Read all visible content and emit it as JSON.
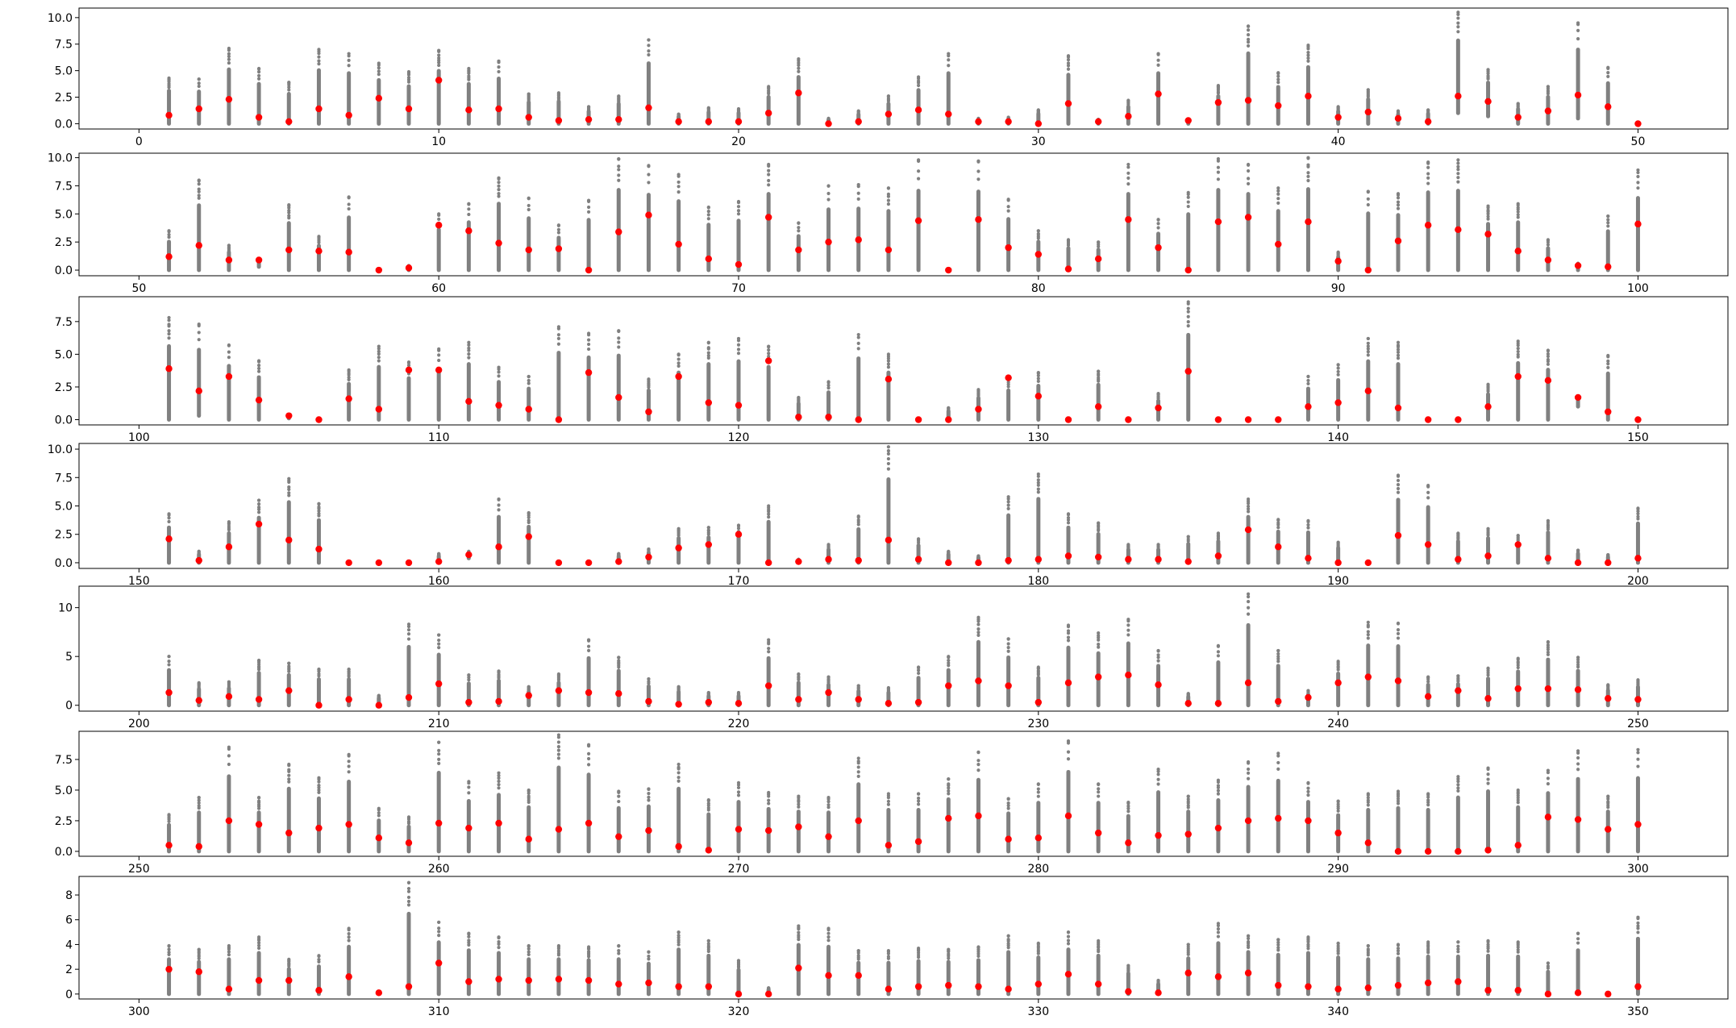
{
  "colors": {
    "points": "#808080",
    "median": "#ff0000",
    "axes": "#000000",
    "background": "#ffffff"
  },
  "chart_data": [
    {
      "type": "scatter",
      "xlim": [
        -2,
        53
      ],
      "ylim": [
        -0.5,
        10.9
      ],
      "xticks": [
        0,
        10,
        20,
        30,
        40,
        50
      ],
      "xtick_labels": [
        "0",
        "10",
        "20",
        "30",
        "40",
        "50"
      ],
      "yticks": [
        0,
        2.5,
        5,
        7.5,
        10
      ],
      "ytick_labels": [
        "0.0",
        "2.5",
        "5.0",
        "7.5",
        "10.0"
      ],
      "start": 1,
      "medians": [
        0.8,
        1.4,
        2.3,
        0.6,
        0.2,
        1.4,
        0.8,
        2.4,
        1.4,
        4.1,
        1.3,
        1.4,
        0.6,
        0.3,
        0.4,
        0.4,
        1.5,
        0.2,
        0.2,
        0.2,
        1.0,
        2.9,
        0.0,
        0.2,
        0.9,
        1.3,
        0.9,
        0.2,
        0.2,
        0.0,
        1.9,
        0.2,
        0.7,
        2.8,
        0.3,
        2.0,
        2.2,
        1.7,
        2.6,
        0.6,
        1.1,
        0.5,
        0.2,
        2.6,
        2.1,
        0.6,
        1.2,
        2.7,
        1.6,
        0.0
      ],
      "maxima": [
        4.3,
        4.2,
        7.1,
        5.2,
        3.9,
        7.0,
        6.6,
        5.7,
        4.9,
        6.9,
        5.2,
        5.9,
        2.8,
        2.9,
        1.6,
        2.6,
        7.9,
        0.9,
        1.5,
        1.4,
        3.5,
        6.1,
        0.5,
        1.2,
        2.6,
        4.4,
        6.6,
        0.5,
        0.6,
        1.3,
        6.4,
        0.4,
        2.2,
        6.6,
        0.4,
        3.6,
        9.2,
        4.8,
        7.4,
        1.6,
        3.2,
        1.2,
        1.3,
        10.5,
        5.1,
        1.9,
        3.5,
        9.5,
        5.3,
        0.0
      ],
      "minima": [
        0,
        0,
        0,
        0,
        0,
        0,
        0,
        0,
        0,
        0,
        0,
        0,
        0,
        0,
        0,
        0,
        0,
        0,
        0,
        0,
        0,
        0,
        0,
        0,
        0,
        0,
        0,
        0,
        0,
        0,
        0,
        0,
        0,
        0,
        0,
        0,
        0,
        0,
        0,
        0,
        0,
        0,
        0,
        1.0,
        0.7,
        0,
        0,
        0.5,
        0,
        0
      ]
    },
    {
      "type": "scatter",
      "xlim": [
        48,
        103
      ],
      "ylim": [
        -0.5,
        10.4
      ],
      "xticks": [
        50,
        60,
        70,
        80,
        90,
        100
      ],
      "xtick_labels": [
        "50",
        "60",
        "70",
        "80",
        "90",
        "100"
      ],
      "yticks": [
        0,
        2.5,
        5,
        7.5,
        10
      ],
      "ytick_labels": [
        "0.0",
        "2.5",
        "5.0",
        "7.5",
        "10.0"
      ],
      "start": 51,
      "medians": [
        1.2,
        2.2,
        0.9,
        0.9,
        1.8,
        1.7,
        1.6,
        0.0,
        0.2,
        4.0,
        3.5,
        2.4,
        1.8,
        1.9,
        0.0,
        3.4,
        4.9,
        2.3,
        1.0,
        0.5,
        4.7,
        1.8,
        2.5,
        2.7,
        1.8,
        4.4,
        0.0,
        4.5,
        2.0,
        1.4,
        0.1,
        1.0,
        4.5,
        2.0,
        0.0,
        4.3,
        4.7,
        2.3,
        4.3,
        0.8,
        0.0,
        2.6,
        4.0,
        3.6,
        3.2,
        1.7,
        0.9,
        0.4,
        0.3,
        4.1
      ],
      "maxima": [
        3.5,
        8.0,
        2.2,
        0.9,
        5.8,
        3.0,
        6.5,
        0.0,
        0.4,
        5.0,
        5.9,
        8.2,
        6.4,
        4.0,
        6.2,
        9.9,
        9.3,
        8.5,
        5.6,
        6.1,
        9.4,
        4.2,
        7.5,
        7.6,
        7.3,
        9.8,
        0.0,
        9.7,
        6.3,
        3.5,
        2.7,
        2.5,
        9.4,
        4.5,
        6.9,
        9.9,
        9.4,
        7.3,
        10.0,
        1.6,
        7.0,
        6.8,
        9.6,
        9.8,
        5.7,
        5.9,
        2.7,
        0.6,
        4.8,
        8.9
      ],
      "minima": [
        0,
        0,
        0,
        0.3,
        0,
        0,
        0,
        0,
        0,
        0,
        0,
        0,
        0,
        0,
        0,
        0,
        0,
        0,
        0,
        0,
        0,
        0,
        0,
        0,
        0,
        0,
        0,
        0,
        0,
        0,
        0,
        0,
        0,
        0,
        0,
        0,
        0,
        0,
        0,
        0,
        0,
        0,
        0,
        0,
        0,
        0,
        0,
        0,
        0,
        0
      ]
    },
    {
      "type": "scatter",
      "xlim": [
        98,
        153
      ],
      "ylim": [
        -0.4,
        9.4
      ],
      "xticks": [
        100,
        110,
        120,
        130,
        140,
        150
      ],
      "xtick_labels": [
        "100",
        "110",
        "120",
        "130",
        "140",
        "150"
      ],
      "yticks": [
        0,
        2.5,
        5,
        7.5
      ],
      "ytick_labels": [
        "0.0",
        "2.5",
        "5.0",
        "7.5"
      ],
      "start": 101,
      "medians": [
        3.9,
        2.2,
        3.3,
        1.5,
        0.3,
        0.0,
        1.6,
        0.8,
        3.8,
        3.8,
        1.4,
        1.1,
        0.8,
        0.0,
        3.6,
        1.7,
        0.6,
        3.3,
        1.3,
        1.1,
        4.5,
        0.2,
        0.2,
        0.0,
        3.1,
        0.0,
        0.0,
        0.8,
        3.2,
        1.8,
        0.0,
        1.0,
        0.0,
        0.9,
        3.7,
        0.0,
        0.0,
        0.0,
        1.0,
        1.3,
        2.2,
        0.9,
        0.0,
        0.0,
        1.0,
        3.3,
        3.0,
        1.7,
        0.6,
        0.0
      ],
      "maxima": [
        7.8,
        7.3,
        5.7,
        4.5,
        0.4,
        0.0,
        3.8,
        5.6,
        4.4,
        5.4,
        5.9,
        4.0,
        3.3,
        7.1,
        6.6,
        6.8,
        3.1,
        5.0,
        5.9,
        6.2,
        5.6,
        1.7,
        2.9,
        6.5,
        5.0,
        0.0,
        0.9,
        2.3,
        3.1,
        3.6,
        0.0,
        3.7,
        0.0,
        2.0,
        9.0,
        0.0,
        0.0,
        0.0,
        3.3,
        4.2,
        6.2,
        5.9,
        0.0,
        0.0,
        2.7,
        6.0,
        5.3,
        1.8,
        4.9,
        0.0
      ],
      "minima": [
        0,
        0.3,
        0,
        0,
        0.1,
        0,
        0,
        0,
        0,
        0,
        0,
        0,
        0,
        0,
        0,
        0,
        0,
        0,
        0,
        0,
        0,
        0,
        0,
        0,
        0,
        0,
        0,
        0,
        0,
        0,
        0,
        0,
        0,
        0,
        0,
        0,
        0,
        0,
        0,
        0,
        0,
        0,
        0,
        0,
        0,
        0,
        0,
        1.0,
        0,
        0
      ]
    },
    {
      "type": "scatter",
      "xlim": [
        148,
        203
      ],
      "ylim": [
        -0.5,
        10.5
      ],
      "xticks": [
        150,
        160,
        170,
        180,
        190,
        200
      ],
      "xtick_labels": [
        "150",
        "160",
        "170",
        "180",
        "190",
        "200"
      ],
      "yticks": [
        0,
        2.5,
        5,
        7.5,
        10
      ],
      "ytick_labels": [
        "0.0",
        "2.5",
        "5.0",
        "7.5",
        "10.0"
      ],
      "start": 151,
      "medians": [
        2.1,
        0.2,
        1.4,
        3.4,
        2.0,
        1.2,
        0.0,
        0.0,
        0.0,
        0.1,
        0.7,
        1.4,
        2.3,
        0.0,
        0.0,
        0.1,
        0.5,
        1.3,
        1.6,
        2.5,
        0.0,
        0.1,
        0.3,
        0.2,
        2.0,
        0.3,
        0.0,
        0.0,
        0.2,
        0.3,
        0.6,
        0.5,
        0.3,
        0.3,
        0.1,
        0.6,
        2.9,
        1.4,
        0.4,
        0.0,
        0.0,
        2.4,
        1.6,
        0.3,
        0.6,
        1.6,
        0.4,
        0.0,
        0.0,
        0.4
      ],
      "maxima": [
        4.3,
        1.0,
        3.6,
        5.5,
        7.4,
        5.2,
        0.0,
        0.0,
        0.0,
        0.8,
        1.0,
        5.6,
        4.4,
        0.0,
        0.0,
        0.8,
        1.2,
        3.0,
        3.1,
        3.3,
        5.0,
        0.3,
        1.6,
        4.1,
        10.2,
        2.1,
        1.0,
        0.6,
        5.8,
        7.8,
        4.3,
        3.5,
        1.6,
        1.6,
        2.3,
        2.6,
        5.6,
        3.8,
        3.7,
        1.8,
        0.0,
        7.7,
        6.8,
        2.6,
        3.0,
        2.4,
        3.7,
        1.1,
        0.7,
        4.8
      ],
      "minima": [
        0,
        0,
        0,
        0,
        0,
        0,
        0,
        0,
        0,
        0,
        0.4,
        0,
        0,
        0,
        0,
        0,
        0,
        0,
        0,
        0,
        0,
        0,
        0,
        0,
        0,
        0,
        0,
        0,
        0,
        0,
        0,
        0,
        0,
        0,
        0,
        0,
        0,
        0,
        0,
        0,
        0,
        0,
        0,
        0,
        0,
        0,
        0,
        0,
        0,
        0
      ]
    },
    {
      "type": "scatter",
      "xlim": [
        198,
        253
      ],
      "ylim": [
        -0.6,
        12.2
      ],
      "xticks": [
        200,
        210,
        220,
        230,
        240,
        250
      ],
      "xtick_labels": [
        "200",
        "210",
        "220",
        "230",
        "240",
        "250"
      ],
      "yticks": [
        0,
        5,
        10
      ],
      "ytick_labels": [
        "0",
        "5",
        "10"
      ],
      "start": 201,
      "medians": [
        1.3,
        0.5,
        0.9,
        0.6,
        1.5,
        0.0,
        0.6,
        0.0,
        0.8,
        2.2,
        0.3,
        0.4,
        1.0,
        1.5,
        1.3,
        1.2,
        0.4,
        0.1,
        0.3,
        0.2,
        2.0,
        0.6,
        1.3,
        0.6,
        0.2,
        0.3,
        2.0,
        2.5,
        2.0,
        0.3,
        2.3,
        2.9,
        3.1,
        2.1,
        0.2,
        0.2,
        2.3,
        0.4,
        0.8,
        2.3,
        2.9,
        2.5,
        0.9,
        1.5,
        0.7,
        1.7,
        1.7,
        1.6,
        0.7,
        0.6
      ],
      "maxima": [
        5.0,
        2.3,
        2.4,
        4.6,
        4.3,
        3.7,
        3.7,
        1.0,
        8.3,
        7.2,
        3.1,
        3.5,
        1.9,
        3.2,
        6.7,
        4.9,
        2.7,
        1.9,
        1.3,
        1.3,
        6.7,
        3.2,
        2.9,
        2.0,
        1.8,
        3.9,
        5.0,
        9.0,
        6.8,
        3.9,
        8.2,
        7.4,
        8.8,
        5.6,
        1.2,
        6.1,
        11.4,
        5.6,
        1.5,
        4.5,
        8.5,
        8.4,
        2.9,
        3.0,
        3.8,
        4.8,
        6.5,
        4.9,
        2.1,
        2.6
      ],
      "minima": [
        0,
        0,
        0,
        0,
        0,
        0,
        0,
        0,
        0,
        0,
        0,
        0,
        0,
        0,
        0,
        0,
        0,
        0,
        0,
        0,
        0,
        0,
        0,
        0,
        0,
        0,
        0,
        0,
        0,
        0,
        0,
        0,
        0,
        0,
        0,
        0,
        0,
        0,
        0,
        0,
        0,
        0,
        0,
        0,
        0,
        0,
        0,
        0,
        0,
        0
      ]
    },
    {
      "type": "scatter",
      "xlim": [
        248,
        303
      ],
      "ylim": [
        -0.4,
        9.8
      ],
      "xticks": [
        250,
        260,
        270,
        280,
        290,
        300
      ],
      "xtick_labels": [
        "250",
        "260",
        "270",
        "280",
        "290",
        "300"
      ],
      "yticks": [
        0,
        2.5,
        5,
        7.5
      ],
      "ytick_labels": [
        "0.0",
        "2.5",
        "5.0",
        "7.5"
      ],
      "start": 251,
      "medians": [
        0.5,
        0.4,
        2.5,
        2.2,
        1.5,
        1.9,
        2.2,
        1.1,
        0.7,
        2.3,
        1.9,
        2.3,
        1.0,
        1.8,
        2.3,
        1.2,
        1.7,
        0.4,
        0.1,
        1.8,
        1.7,
        2.0,
        1.2,
        2.5,
        0.5,
        0.8,
        2.7,
        2.9,
        1.0,
        1.1,
        2.9,
        1.5,
        0.7,
        1.3,
        1.4,
        1.9,
        2.5,
        2.7,
        2.5,
        1.5,
        0.7,
        0.0,
        0.0,
        0.0,
        0.1,
        0.5,
        2.8,
        2.6,
        1.8,
        2.2
      ],
      "maxima": [
        3.0,
        4.4,
        8.5,
        4.4,
        7.1,
        6.0,
        7.9,
        3.5,
        2.8,
        8.9,
        5.7,
        6.4,
        5.0,
        9.5,
        8.7,
        4.9,
        5.1,
        7.1,
        4.2,
        5.6,
        4.8,
        4.5,
        4.4,
        7.6,
        4.7,
        4.7,
        5.9,
        8.1,
        4.3,
        5.5,
        9.0,
        5.5,
        4.0,
        6.7,
        4.5,
        5.8,
        7.3,
        8.0,
        5.6,
        4.1,
        4.7,
        4.9,
        4.7,
        6.1,
        6.8,
        5.0,
        6.6,
        8.2,
        4.5,
        8.3
      ],
      "minima": [
        0,
        0,
        0,
        0,
        0,
        0,
        0,
        0,
        0,
        0,
        0,
        0,
        0,
        0,
        0,
        0,
        0,
        0,
        0,
        0,
        0,
        0,
        0,
        0,
        0,
        0,
        0,
        0,
        0,
        0,
        0,
        0,
        0,
        0,
        0,
        0,
        0,
        0,
        0,
        0,
        0,
        0,
        0,
        0,
        0,
        0,
        0,
        0,
        0,
        0
      ]
    },
    {
      "type": "scatter",
      "xlim": [
        298,
        353
      ],
      "ylim": [
        -0.4,
        9.5
      ],
      "xticks": [
        300,
        310,
        320,
        330,
        340,
        350
      ],
      "xtick_labels": [
        "300",
        "310",
        "320",
        "330",
        "340",
        "350"
      ],
      "yticks": [
        0,
        2,
        4,
        6,
        8
      ],
      "ytick_labels": [
        "0",
        "2",
        "4",
        "6",
        "8"
      ],
      "start": 301,
      "medians": [
        2.0,
        1.8,
        0.4,
        1.1,
        1.1,
        0.3,
        1.4,
        0.1,
        0.6,
        2.5,
        1.0,
        1.2,
        1.1,
        1.2,
        1.1,
        0.8,
        0.9,
        0.6,
        0.6,
        0.0,
        0.0,
        2.1,
        1.5,
        1.5,
        0.4,
        0.6,
        0.7,
        0.6,
        0.4,
        0.8,
        1.6,
        0.8,
        0.2,
        0.1,
        1.7,
        1.4,
        1.7,
        0.7,
        0.6,
        0.4,
        0.5,
        0.7,
        0.9,
        1.0,
        0.3,
        0.3,
        0.0,
        0.1,
        0.0,
        0.6
      ],
      "maxima": [
        3.9,
        3.6,
        3.9,
        4.6,
        2.8,
        3.1,
        5.3,
        0.2,
        9.0,
        5.8,
        4.9,
        4.6,
        3.9,
        3.9,
        3.8,
        3.9,
        3.4,
        5.0,
        4.3,
        2.7,
        0.5,
        5.5,
        5.3,
        3.5,
        3.5,
        3.7,
        3.6,
        3.8,
        4.7,
        4.1,
        5.0,
        4.3,
        2.3,
        1.1,
        4.0,
        5.7,
        4.7,
        4.4,
        4.6,
        4.1,
        3.9,
        4.0,
        4.2,
        4.2,
        4.3,
        4.2,
        2.5,
        4.9,
        0.0,
        6.2
      ],
      "minima": [
        0,
        0,
        0,
        0,
        0,
        0,
        0,
        0,
        0,
        0,
        0,
        0,
        0,
        0,
        0,
        0,
        0,
        0,
        0,
        0,
        0,
        0,
        0,
        0,
        0,
        0,
        0,
        0,
        0,
        0,
        0,
        0,
        0,
        0,
        0,
        0,
        0,
        0,
        0,
        0,
        0,
        0,
        0,
        0,
        0,
        0,
        0,
        0,
        0,
        0
      ]
    }
  ]
}
